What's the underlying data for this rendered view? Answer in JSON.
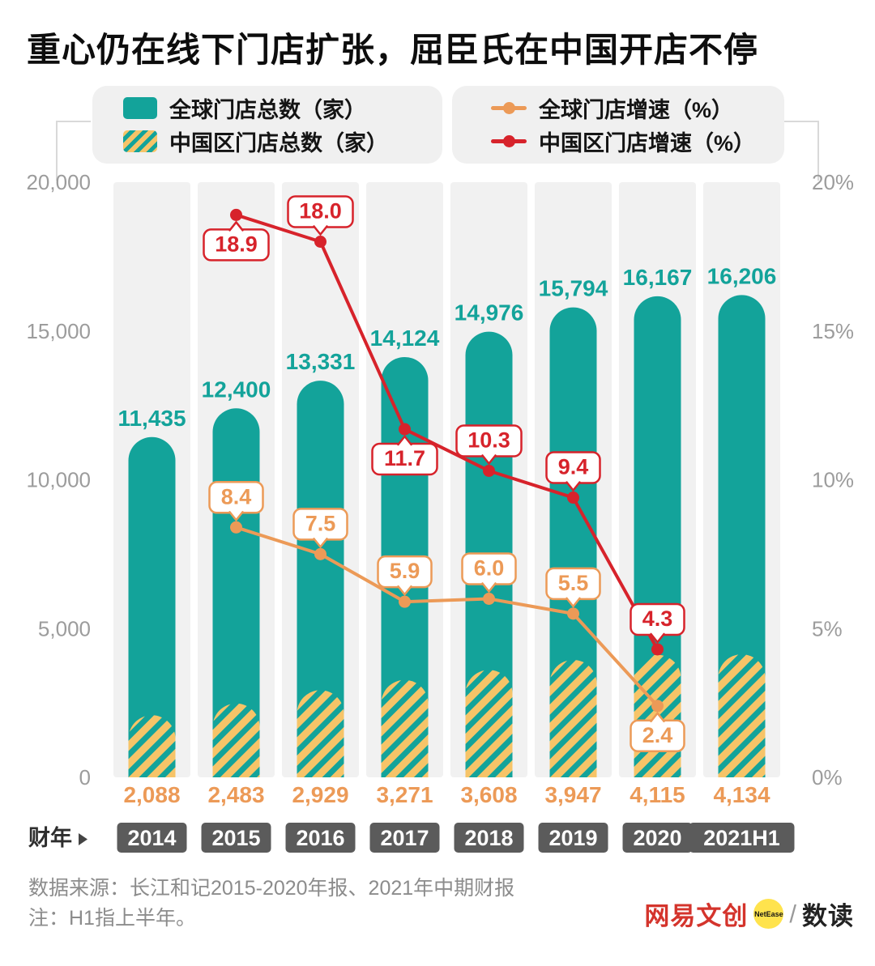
{
  "title": "重心仍在线下门店扩张，屈臣氏在中国开店不停",
  "legend": {
    "items": [
      {
        "key": "global_stores",
        "label": "全球门店总数（家）",
        "swatch": "teal-square"
      },
      {
        "key": "china_stores",
        "label": "中国区门店总数（家）",
        "swatch": "striped-square"
      },
      {
        "key": "global_growth",
        "label": "全球门店增速（%）",
        "swatch": "orange-line-dot"
      },
      {
        "key": "china_growth",
        "label": "中国区门店增速（%）",
        "swatch": "red-line-dot"
      }
    ]
  },
  "axes": {
    "x_label": "财年",
    "left_max": 20000,
    "right_max": 20,
    "left_ticks": [
      {
        "label": "20,000",
        "value": 20000
      },
      {
        "label": "15,000",
        "value": 15000
      },
      {
        "label": "10,000",
        "value": 10000
      },
      {
        "label": "5,000",
        "value": 5000
      },
      {
        "label": "0",
        "value": 0
      }
    ],
    "right_ticks": [
      {
        "label": "20%",
        "value": 20
      },
      {
        "label": "15%",
        "value": 15
      },
      {
        "label": "10%",
        "value": 10
      },
      {
        "label": "5%",
        "value": 5
      },
      {
        "label": "0%",
        "value": 0
      }
    ]
  },
  "chart_data": {
    "type": "bar-line-combo",
    "categories": [
      "2014",
      "2015",
      "2016",
      "2017",
      "2018",
      "2019",
      "2020",
      "2021H1"
    ],
    "bar_series": [
      {
        "name": "全球门店总数（家）",
        "values": [
          11435,
          12400,
          13331,
          14124,
          14976,
          15794,
          16167,
          16206
        ],
        "labels": [
          "11,435",
          "12,400",
          "13,331",
          "14,124",
          "14,976",
          "15,794",
          "16,167",
          "16,206"
        ],
        "label_position": "above-bar"
      },
      {
        "name": "中国区门店总数（家）",
        "values": [
          2088,
          2483,
          2929,
          3271,
          3608,
          3947,
          4115,
          4134
        ],
        "labels": [
          "2,088",
          "2,483",
          "2,929",
          "3,271",
          "3,608",
          "3,947",
          "4,115",
          "4,134"
        ],
        "label_position": "below-axis"
      }
    ],
    "line_series": [
      {
        "name": "全球门店增速（%）",
        "values": [
          null,
          8.4,
          7.5,
          5.9,
          6.0,
          5.5,
          2.4,
          null
        ],
        "labels": [
          null,
          "8.4",
          "7.5",
          "5.9",
          "6.0",
          "5.5",
          "2.4",
          null
        ],
        "callout_pos": [
          null,
          "above",
          "above",
          "above",
          "above",
          "above",
          "below",
          null
        ]
      },
      {
        "name": "中国区门店增速（%）",
        "values": [
          null,
          18.9,
          18.0,
          11.7,
          10.3,
          9.4,
          4.3,
          null
        ],
        "labels": [
          null,
          "18.9",
          "18.0",
          "11.7",
          "10.3",
          "9.4",
          "4.3",
          null
        ],
        "callout_pos": [
          null,
          "below",
          "above",
          "below",
          "above",
          "above",
          "above",
          null
        ]
      }
    ],
    "ylim_left": [
      0,
      20000
    ],
    "ylim_right_percent": [
      0,
      20
    ],
    "legend_position": "top",
    "grid": false
  },
  "source": {
    "line1": "数据来源：长江和记2015-2020年报、2021年中期财报",
    "line2": "注：H1指上半年。"
  },
  "footer": {
    "brand": "网易文创",
    "badge": "NetEase",
    "slash": "/",
    "sub": "数读"
  },
  "colors": {
    "teal": "#13A39A",
    "orange": "#EC9A57",
    "red": "#D7232B",
    "yellow": "#F6C468",
    "strip": "#F1F1F1",
    "badge_bg": "#5B5B5B",
    "axis_text": "#9C9C9C",
    "source_text": "#8C8C8C",
    "legend_bg": "#F0F0F0",
    "brand_red": "#D4342C",
    "badge_yellow": "#FFE34D",
    "bracket": "#D9D9D9"
  }
}
